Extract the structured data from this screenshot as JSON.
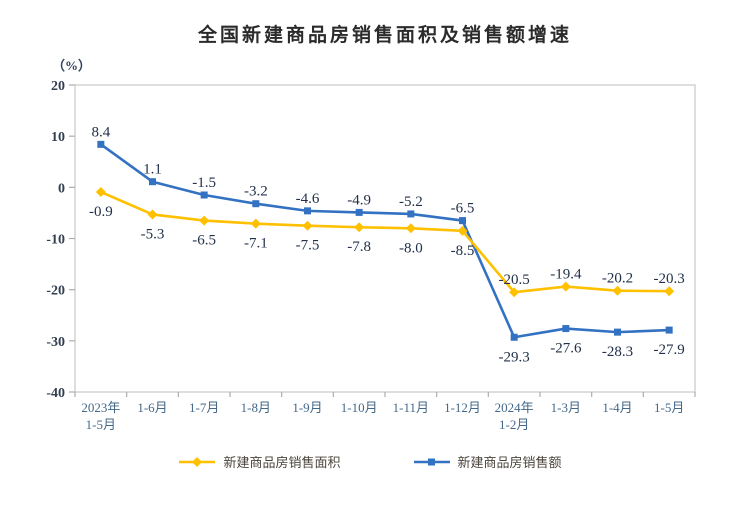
{
  "title": "全国新建商品房销售面积及销售额增速",
  "y_axis_unit": "（%）",
  "colors": {
    "background": "#FFFFFF",
    "title_text": "#2B2B2B",
    "unit_text": "#33415C",
    "plot_border": "#C9C7C4",
    "tick": "#AFADAB",
    "y_tick_text": "#333F50",
    "x_tick_text": "#44688A",
    "data_label_text": "#223049",
    "legend_text": "#4A443C"
  },
  "chart_data": {
    "type": "line",
    "title": "全国新建商品房销售面积及销售额增速",
    "ylabel": "（%）",
    "categories": [
      [
        "2023年",
        "1-5月"
      ],
      [
        "1-6月"
      ],
      [
        "1-7月"
      ],
      [
        "1-8月"
      ],
      [
        "1-9月"
      ],
      [
        "1-10月"
      ],
      [
        "1-11月"
      ],
      [
        "1-12月"
      ],
      [
        "2024年",
        "1-2月"
      ],
      [
        "1-3月"
      ],
      [
        "1-4月"
      ],
      [
        "1-5月"
      ]
    ],
    "series": [
      {
        "name": "新建商品房销售面积",
        "color": "#FFC000",
        "marker": "diamond",
        "values": [
          -0.9,
          -5.3,
          -6.5,
          -7.1,
          -7.5,
          -7.8,
          -8.0,
          -8.5,
          -20.5,
          -19.4,
          -20.2,
          -20.3
        ],
        "label_sides": [
          "below",
          "below",
          "below",
          "below",
          "below",
          "below",
          "below",
          "below",
          "above",
          "above",
          "above",
          "above"
        ]
      },
      {
        "name": "新建商品房销售额",
        "color": "#3371C3",
        "marker": "square",
        "values": [
          8.4,
          1.1,
          -1.5,
          -3.2,
          -4.6,
          -4.9,
          -5.2,
          -6.5,
          -29.3,
          -27.6,
          -28.3,
          -27.9
        ],
        "label_sides": [
          "above",
          "above",
          "above",
          "above",
          "above",
          "above",
          "above",
          "above",
          "below",
          "below",
          "below",
          "below"
        ]
      }
    ],
    "ylim": [
      -40,
      20
    ],
    "ytick_step": 10,
    "grid": false,
    "legend_position": "bottom"
  }
}
